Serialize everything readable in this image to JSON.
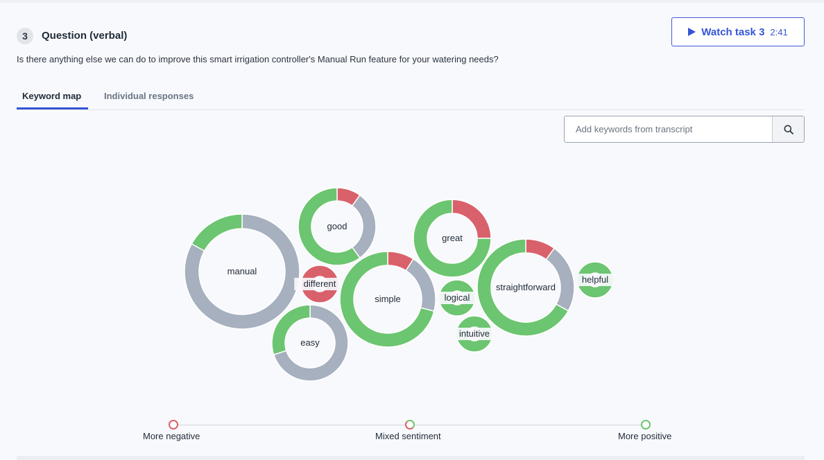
{
  "question": {
    "number": "3",
    "title": "Question (verbal)",
    "text": "Is there anything else we can do to improve this smart irrigation controller's Manual Run feature for your watering needs?"
  },
  "watch_button": {
    "label": "Watch task 3",
    "time": "2:41"
  },
  "tabs": [
    {
      "label": "Keyword map",
      "active": true
    },
    {
      "label": "Individual responses",
      "active": false
    }
  ],
  "search": {
    "placeholder": "Add keywords from transcript",
    "value": "",
    "icon": "search-icon"
  },
  "colors": {
    "positive": "#6cc570",
    "negative": "#d9616b",
    "neutral": "#a6b0bf",
    "accent": "#3455d6"
  },
  "keywords": [
    {
      "word": "manual",
      "positive": 0.17,
      "negative": 0,
      "neutral": 0.83
    },
    {
      "word": "good",
      "positive": 0.6,
      "negative": 0.1,
      "neutral": 0.3
    },
    {
      "word": "different",
      "positive": 0,
      "negative": 1,
      "neutral": 0
    },
    {
      "word": "easy",
      "positive": 0.3,
      "negative": 0,
      "neutral": 0.7
    },
    {
      "word": "simple",
      "positive": 0.71,
      "negative": 0.09,
      "neutral": 0.2
    },
    {
      "word": "great",
      "positive": 0.75,
      "negative": 0.25,
      "neutral": 0
    },
    {
      "word": "logical",
      "positive": 1,
      "negative": 0,
      "neutral": 0
    },
    {
      "word": "intuitive",
      "positive": 1,
      "negative": 0,
      "neutral": 0
    },
    {
      "word": "straightforward",
      "positive": 0.67,
      "negative": 0.1,
      "neutral": 0.23
    },
    {
      "word": "helpful",
      "positive": 1,
      "negative": 0,
      "neutral": 0
    }
  ],
  "legend": {
    "negative": "More negative",
    "mixed": "Mixed sentiment",
    "positive": "More positive"
  }
}
